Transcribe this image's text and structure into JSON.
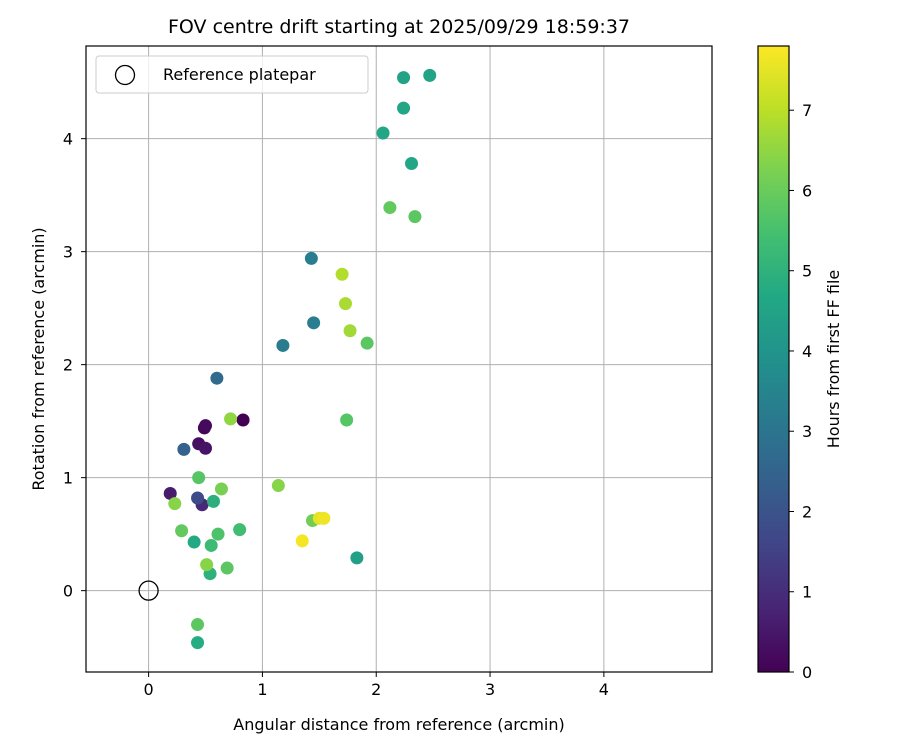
{
  "chart_data": {
    "type": "scatter",
    "title": "FOV centre drift starting at 2025/09/29 18:59:37",
    "xlabel": "Angular distance from reference (arcmin)",
    "ylabel": "Rotation from reference (arcmin)",
    "xlim": [
      -0.55,
      4.95
    ],
    "ylim": [
      -0.72,
      4.82
    ],
    "xticks": [
      "0",
      "1",
      "2",
      "3",
      "4"
    ],
    "yticks": [
      "0",
      "1",
      "2",
      "3",
      "4"
    ],
    "grid": true,
    "legend": {
      "position": "top-left",
      "label": "Reference platepar"
    },
    "reference_point": {
      "x": 0,
      "y": 0
    },
    "colorbar": {
      "label": "Hours from first FF file",
      "colormap": "viridis",
      "range": [
        0,
        7.8
      ],
      "ticks": [
        "0",
        "1",
        "2",
        "3",
        "4",
        "5",
        "6",
        "7"
      ]
    },
    "points": [
      {
        "x": 0.83,
        "y": 1.51,
        "c": 0.0
      },
      {
        "x": 0.49,
        "y": 1.44,
        "c": 0.1
      },
      {
        "x": 0.5,
        "y": 1.46,
        "c": 0.2
      },
      {
        "x": 0.44,
        "y": 1.3,
        "c": 0.3
      },
      {
        "x": 0.5,
        "y": 1.26,
        "c": 0.4
      },
      {
        "x": 0.19,
        "y": 0.86,
        "c": 0.6
      },
      {
        "x": 0.47,
        "y": 0.76,
        "c": 0.9
      },
      {
        "x": 0.43,
        "y": 0.82,
        "c": 1.8
      },
      {
        "x": 0.31,
        "y": 1.25,
        "c": 2.4
      },
      {
        "x": 0.6,
        "y": 1.88,
        "c": 2.7
      },
      {
        "x": 1.18,
        "y": 2.17,
        "c": 3.2
      },
      {
        "x": 1.45,
        "y": 2.37,
        "c": 3.3
      },
      {
        "x": 1.43,
        "y": 2.94,
        "c": 3.3
      },
      {
        "x": 2.24,
        "y": 4.54,
        "c": 4.5
      },
      {
        "x": 2.47,
        "y": 4.56,
        "c": 4.5
      },
      {
        "x": 2.24,
        "y": 4.27,
        "c": 4.6
      },
      {
        "x": 2.06,
        "y": 4.05,
        "c": 4.6
      },
      {
        "x": 2.31,
        "y": 3.78,
        "c": 4.6
      },
      {
        "x": 1.83,
        "y": 0.29,
        "c": 4.4
      },
      {
        "x": 0.4,
        "y": 0.43,
        "c": 4.7
      },
      {
        "x": 0.43,
        "y": -0.46,
        "c": 4.8
      },
      {
        "x": 0.57,
        "y": 0.79,
        "c": 4.9
      },
      {
        "x": 0.54,
        "y": 0.15,
        "c": 5.0
      },
      {
        "x": 0.55,
        "y": 0.4,
        "c": 5.3
      },
      {
        "x": 0.8,
        "y": 0.54,
        "c": 5.4
      },
      {
        "x": 0.61,
        "y": 0.5,
        "c": 5.6
      },
      {
        "x": 0.69,
        "y": 0.2,
        "c": 5.8
      },
      {
        "x": 0.29,
        "y": 0.53,
        "c": 5.9
      },
      {
        "x": 0.43,
        "y": -0.3,
        "c": 5.8
      },
      {
        "x": 0.44,
        "y": 1.0,
        "c": 5.7
      },
      {
        "x": 1.74,
        "y": 1.51,
        "c": 5.7
      },
      {
        "x": 1.92,
        "y": 2.19,
        "c": 5.8
      },
      {
        "x": 2.34,
        "y": 3.31,
        "c": 5.8
      },
      {
        "x": 2.12,
        "y": 3.39,
        "c": 5.9
      },
      {
        "x": 1.44,
        "y": 0.62,
        "c": 6.1
      },
      {
        "x": 0.64,
        "y": 0.9,
        "c": 6.2
      },
      {
        "x": 0.51,
        "y": 0.23,
        "c": 6.4
      },
      {
        "x": 0.23,
        "y": 0.77,
        "c": 6.4
      },
      {
        "x": 0.72,
        "y": 1.52,
        "c": 6.5
      },
      {
        "x": 1.14,
        "y": 0.93,
        "c": 6.4
      },
      {
        "x": 1.77,
        "y": 2.3,
        "c": 6.7
      },
      {
        "x": 1.73,
        "y": 2.54,
        "c": 6.8
      },
      {
        "x": 1.7,
        "y": 2.8,
        "c": 6.9
      },
      {
        "x": 1.5,
        "y": 0.64,
        "c": 7.5
      },
      {
        "x": 1.54,
        "y": 0.64,
        "c": 7.6
      },
      {
        "x": 1.35,
        "y": 0.44,
        "c": 7.7
      }
    ]
  }
}
